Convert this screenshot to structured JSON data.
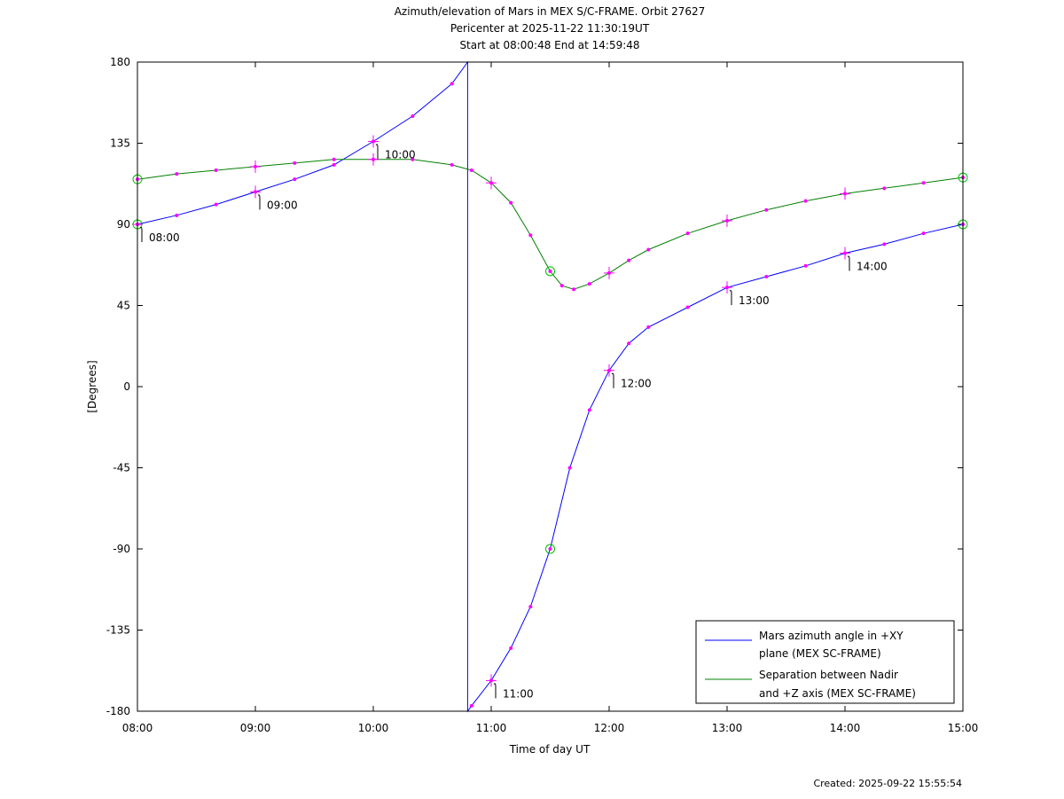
{
  "chart_data": {
    "type": "line",
    "title": [
      "Azimuth/elevation of Mars in MEX S/C-FRAME.  Orbit 27627",
      "Pericenter at 2025-11-22 11:30:19UT",
      "Start at 08:00:48 End at 14:59:48"
    ],
    "xlabel": "Time of day UT",
    "ylabel": "[Degrees]",
    "xlim": [
      "08:00",
      "15:00"
    ],
    "ylim": [
      -180,
      180
    ],
    "x_ticks": [
      "08:00",
      "09:00",
      "10:00",
      "11:00",
      "12:00",
      "13:00",
      "14:00",
      "15:00"
    ],
    "y_ticks": [
      "180",
      "135",
      "90",
      "45",
      "0",
      "-45",
      "-90",
      "-135",
      "-180"
    ],
    "legend_position": "bottom-right",
    "series": [
      {
        "name": "Mars azimuth angle in +XY plane (MEX SC-FRAME)",
        "legend_lines": [
          "Mars azimuth angle in +XY",
          "plane (MEX SC-FRAME)"
        ],
        "color": "#0000ff",
        "points": [
          [
            "08:00",
            90
          ],
          [
            "08:20",
            95
          ],
          [
            "08:40",
            101
          ],
          [
            "09:00",
            108
          ],
          [
            "09:20",
            115
          ],
          [
            "09:40",
            123
          ],
          [
            "10:00",
            136
          ],
          [
            "10:20",
            150
          ],
          [
            "10:40",
            168
          ],
          [
            "10:48",
            180
          ],
          [
            "10:48",
            -180
          ],
          [
            "10:50",
            -177
          ],
          [
            "11:00",
            -163
          ],
          [
            "11:10",
            -145
          ],
          [
            "11:20",
            -122
          ],
          [
            "11:30",
            -90
          ],
          [
            "11:40",
            -45
          ],
          [
            "11:50",
            -13
          ],
          [
            "12:00",
            9
          ],
          [
            "12:10",
            24
          ],
          [
            "12:20",
            33
          ],
          [
            "12:40",
            44
          ],
          [
            "13:00",
            55
          ],
          [
            "13:20",
            61
          ],
          [
            "13:40",
            67
          ],
          [
            "14:00",
            74
          ],
          [
            "14:20",
            79
          ],
          [
            "14:40",
            85
          ],
          [
            "15:00",
            90
          ]
        ]
      },
      {
        "name": "Separation between Nadir and +Z axis (MEX SC-FRAME)",
        "legend_lines": [
          "Separation between Nadir",
          "and +Z axis (MEX SC-FRAME)"
        ],
        "color": "#008000",
        "points": [
          [
            "08:00",
            115
          ],
          [
            "08:20",
            118
          ],
          [
            "08:40",
            120
          ],
          [
            "09:00",
            122
          ],
          [
            "09:20",
            124
          ],
          [
            "09:40",
            126
          ],
          [
            "10:00",
            126
          ],
          [
            "10:20",
            126
          ],
          [
            "10:40",
            123
          ],
          [
            "10:50",
            120
          ],
          [
            "11:00",
            113
          ],
          [
            "11:10",
            102
          ],
          [
            "11:20",
            84
          ],
          [
            "11:30",
            64
          ],
          [
            "11:36",
            56
          ],
          [
            "11:42",
            54
          ],
          [
            "11:50",
            57
          ],
          [
            "12:00",
            63
          ],
          [
            "12:10",
            70
          ],
          [
            "12:20",
            76
          ],
          [
            "12:40",
            85
          ],
          [
            "13:00",
            92
          ],
          [
            "13:20",
            98
          ],
          [
            "13:40",
            103
          ],
          [
            "14:00",
            107
          ],
          [
            "14:20",
            110
          ],
          [
            "14:40",
            113
          ],
          [
            "15:00",
            116
          ]
        ]
      }
    ],
    "hour_markers": [
      {
        "label": "08:00",
        "x": "08:00",
        "y": 90
      },
      {
        "label": "09:00",
        "x": "09:00",
        "y": 108
      },
      {
        "label": "10:00",
        "x": "10:00",
        "y": 136
      },
      {
        "label": "11:00",
        "x": "11:00",
        "y": -163
      },
      {
        "label": "12:00",
        "x": "12:00",
        "y": 9
      },
      {
        "label": "13:00",
        "x": "13:00",
        "y": 55
      },
      {
        "label": "14:00",
        "x": "14:00",
        "y": 74
      }
    ],
    "cross_markers": [
      {
        "series": 0,
        "x": "08:00",
        "y": 90
      },
      {
        "series": 0,
        "x": "09:00",
        "y": 108
      },
      {
        "series": 0,
        "x": "10:00",
        "y": 136
      },
      {
        "series": 0,
        "x": "11:00",
        "y": -163
      },
      {
        "series": 0,
        "x": "12:00",
        "y": 9
      },
      {
        "series": 0,
        "x": "13:00",
        "y": 55
      },
      {
        "series": 0,
        "x": "14:00",
        "y": 74
      },
      {
        "series": 1,
        "x": "09:00",
        "y": 122
      },
      {
        "series": 1,
        "x": "10:00",
        "y": 126
      },
      {
        "series": 1,
        "x": "11:00",
        "y": 113
      },
      {
        "series": 1,
        "x": "12:00",
        "y": 63
      },
      {
        "series": 1,
        "x": "13:00",
        "y": 92
      },
      {
        "series": 1,
        "x": "14:00",
        "y": 107
      }
    ],
    "circle_markers": [
      {
        "x": "08:00",
        "y": 90
      },
      {
        "x": "08:00",
        "y": 115
      },
      {
        "x": "11:30",
        "y": -90
      },
      {
        "x": "11:30",
        "y": 64
      },
      {
        "x": "15:00",
        "y": 90
      },
      {
        "x": "15:00",
        "y": 116
      }
    ],
    "dot_color": "#ff00ff",
    "circle_color": "#00c000"
  },
  "footer": "Created: 2025-09-22 15:55:54"
}
